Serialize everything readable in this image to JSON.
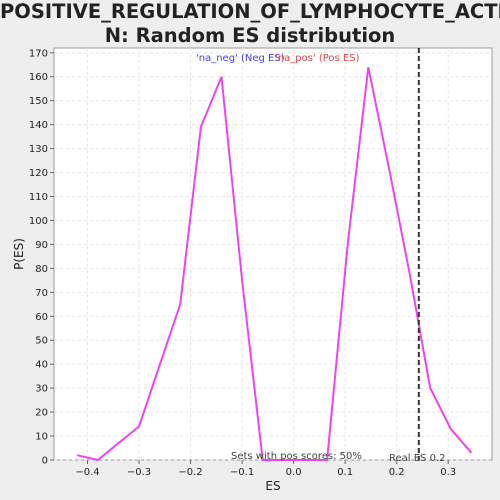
{
  "chart_data": {
    "type": "line",
    "title_line1": "POSITIVE_REGULATION_OF_LYMPHOCYTE_ACTIVATIO",
    "title_line2": "N: Random ES distribution",
    "xlabel": "ES",
    "ylabel": "P(ES)",
    "xlim": [
      -0.465,
      0.385
    ],
    "ylim": [
      0,
      172
    ],
    "xticks": [
      -0.4,
      -0.3,
      -0.2,
      -0.1,
      0.0,
      0.1,
      0.2,
      0.3
    ],
    "xtick_labels": [
      "−0.4",
      "−0.3",
      "−0.2",
      "−0.1",
      "0.0",
      "0.1",
      "0.2",
      "0.3"
    ],
    "yticks": [
      0,
      10,
      20,
      30,
      40,
      50,
      60,
      70,
      80,
      90,
      100,
      110,
      120,
      130,
      140,
      150,
      160,
      170
    ],
    "grid": true,
    "series": [
      {
        "color": "#ee44ee",
        "x": [
          -0.42,
          -0.38,
          -0.3,
          -0.22,
          -0.18,
          -0.14,
          -0.1,
          -0.06,
          0.065,
          0.105,
          0.145,
          0.185,
          0.225,
          0.265,
          0.305,
          0.345
        ],
        "y": [
          2,
          0,
          14,
          65,
          139,
          160,
          75,
          0,
          0,
          90,
          164,
          122,
          78,
          30,
          13,
          3
        ]
      }
    ],
    "real_es": {
      "x": 0.243,
      "label": "Real ES 0.2",
      "color": "#333333"
    },
    "legend": {
      "neg": {
        "text": "'na_neg' (Neg ES)",
        "color": "#4444dd"
      },
      "pos": {
        "text": "'na_pos' (Pos ES)",
        "color": "#dd4444"
      }
    },
    "annotation": "Sets with pos scores: 50%"
  }
}
